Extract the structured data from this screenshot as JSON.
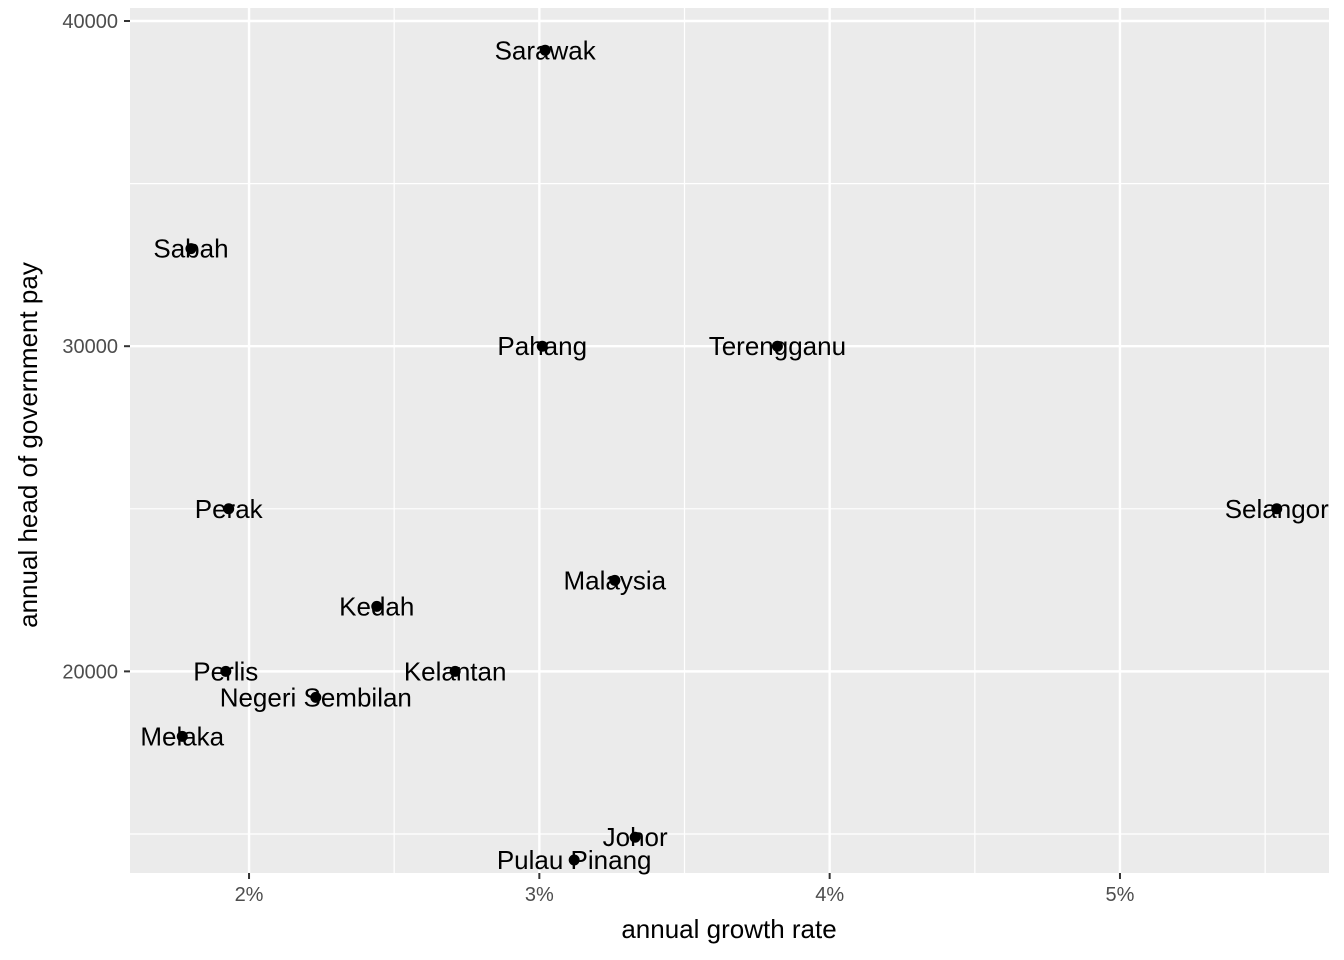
{
  "chart_data": {
    "type": "scatter",
    "title": "",
    "xlabel": "annual growth rate",
    "ylabel": "annual head of government pay",
    "xlim": [
      1.59,
      5.72
    ],
    "ylim": [
      13800,
      40400
    ],
    "x_ticks": [
      {
        "value": 2,
        "label": "2%"
      },
      {
        "value": 3,
        "label": "3%"
      },
      {
        "value": 4,
        "label": "4%"
      },
      {
        "value": 5,
        "label": "5%"
      }
    ],
    "x_minor_ticks": [
      2.5,
      3.5,
      4.5,
      5.5
    ],
    "y_ticks": [
      {
        "value": 20000,
        "label": "20000"
      },
      {
        "value": 30000,
        "label": "30000"
      },
      {
        "value": 40000,
        "label": "40000"
      }
    ],
    "y_minor_ticks": [
      15000,
      25000,
      35000
    ],
    "grid": true,
    "background": "#ebebeb",
    "point_color": "#000000",
    "points": [
      {
        "label": "Sarawak",
        "x": 3.02,
        "y": 39100
      },
      {
        "label": "Sabah",
        "x": 1.8,
        "y": 33000
      },
      {
        "label": "Pahang",
        "x": 3.01,
        "y": 30000
      },
      {
        "label": "Terengganu",
        "x": 3.82,
        "y": 30000
      },
      {
        "label": "Perak",
        "x": 1.93,
        "y": 25000
      },
      {
        "label": "Selangor",
        "x": 5.54,
        "y": 25000
      },
      {
        "label": "Malaysia",
        "x": 3.26,
        "y": 22800
      },
      {
        "label": "Kedah",
        "x": 2.44,
        "y": 22000
      },
      {
        "label": "Perlis",
        "x": 1.92,
        "y": 20000
      },
      {
        "label": "Kelantan",
        "x": 2.71,
        "y": 20000
      },
      {
        "label": "Negeri Sembilan",
        "x": 2.23,
        "y": 19200
      },
      {
        "label": "Melaka",
        "x": 1.77,
        "y": 18000
      },
      {
        "label": "Johor",
        "x": 3.33,
        "y": 14900
      },
      {
        "label": "Pulau Pinang",
        "x": 3.12,
        "y": 14200
      }
    ]
  }
}
